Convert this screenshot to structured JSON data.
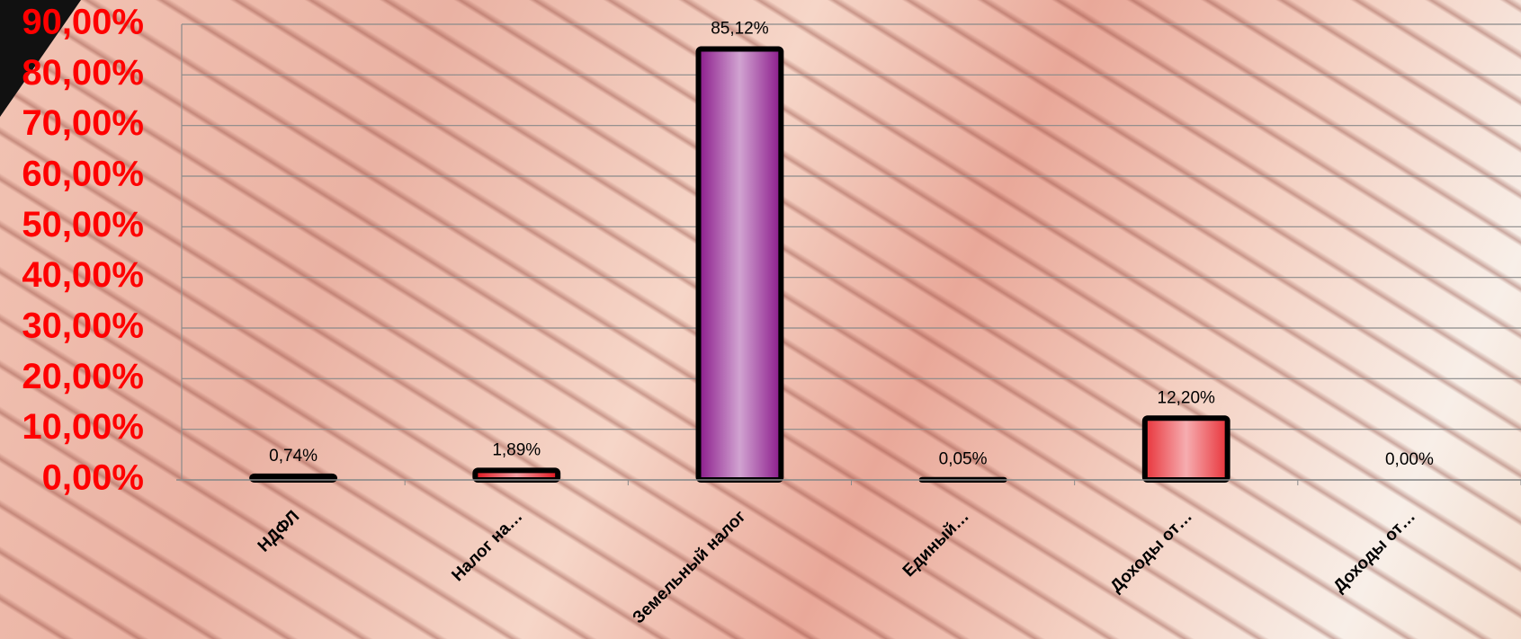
{
  "chart_data": {
    "type": "bar",
    "categories": [
      "НДФЛ",
      "Налог на…",
      "Земельный налог",
      "Единый…",
      "Доходы от…",
      "Доходы от…"
    ],
    "values": [
      0.74,
      1.89,
      85.12,
      0.05,
      12.2,
      0
    ],
    "value_labels": [
      "0,74%",
      "1,89%",
      "85,12%",
      "0,05%",
      "12,20%",
      "0,00%"
    ],
    "colors": [
      "#000000",
      "#e0141e",
      "#8b1a8b",
      "#000000",
      "#e8333a",
      "#000000"
    ],
    "ylim": [
      0,
      90
    ],
    "yticks": [
      {
        "value": 0,
        "label": "0,00%"
      },
      {
        "value": 10,
        "label": "10,00%"
      },
      {
        "value": 20,
        "label": "20,00%"
      },
      {
        "value": 30,
        "label": "30,00%"
      },
      {
        "value": 40,
        "label": "40,00%"
      },
      {
        "value": 50,
        "label": "50,00%"
      },
      {
        "value": 60,
        "label": "60,00%"
      },
      {
        "value": 70,
        "label": "70,00%"
      },
      {
        "value": 80,
        "label": "80,00%"
      },
      {
        "value": 90,
        "label": "90,00%"
      }
    ],
    "grid": true
  }
}
